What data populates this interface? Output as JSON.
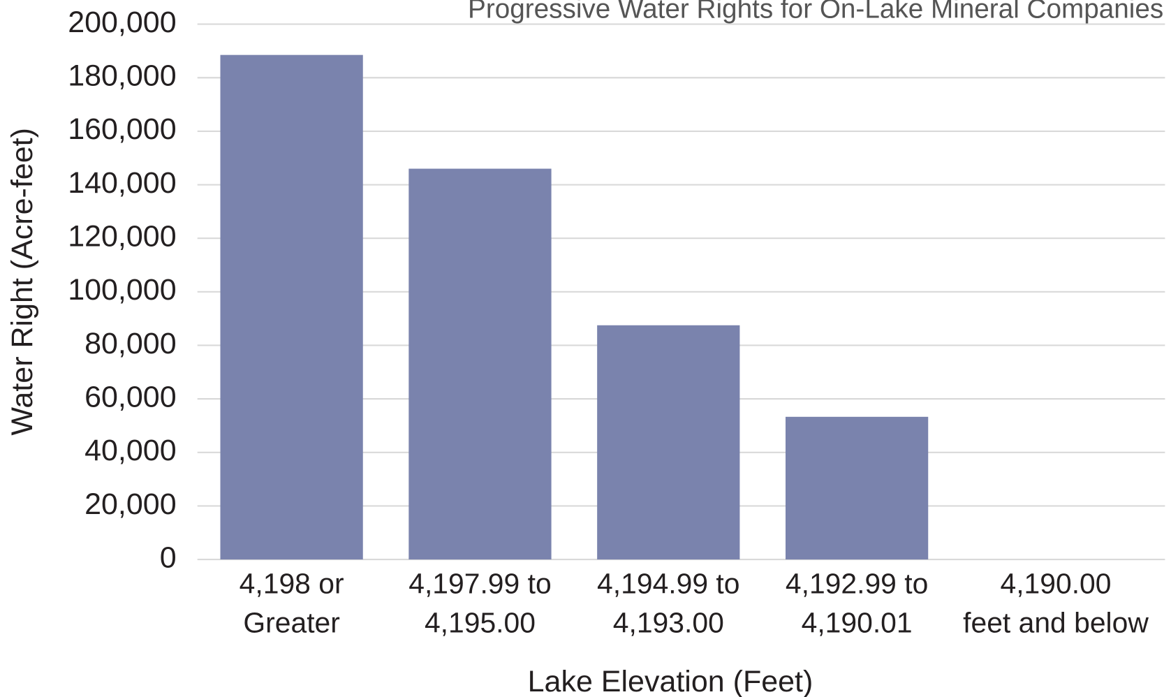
{
  "chart_data": {
    "type": "bar",
    "title": "Progressive Water Rights for On-Lake Mineral Companies",
    "x_label": "Lake Elevation (Feet)",
    "y_label": "Water Right (Acre-feet)",
    "categories": [
      "4,198 or\nGreater",
      "4,197.99 to\n4,195.00",
      "4,194.99 to\n4,193.00",
      "4,192.99 to\n4,190.01",
      "4,190.00\nfeet and below"
    ],
    "values": [
      188500,
      146000,
      87500,
      53300,
      0
    ],
    "color": "#7a83ad",
    "ylim": [
      0,
      200000
    ],
    "yticks": [
      0,
      {
        "value": 20000,
        "label": "20,000"
      },
      {
        "value": 40000,
        "label": "40,000"
      },
      {
        "value": 60000,
        "label": "60,000"
      },
      {
        "value": 80000,
        "label": "80,000"
      },
      {
        "value": 100000,
        "label": "100,000"
      },
      {
        "value": 120000,
        "label": "120,000"
      },
      {
        "value": 140000,
        "label": "140,000"
      },
      {
        "value": 160000,
        "label": "160,000"
      },
      {
        "value": 180000,
        "label": "180,000"
      },
      {
        "value": 200000,
        "label": "200,000"
      }
    ],
    "grid": true
  }
}
